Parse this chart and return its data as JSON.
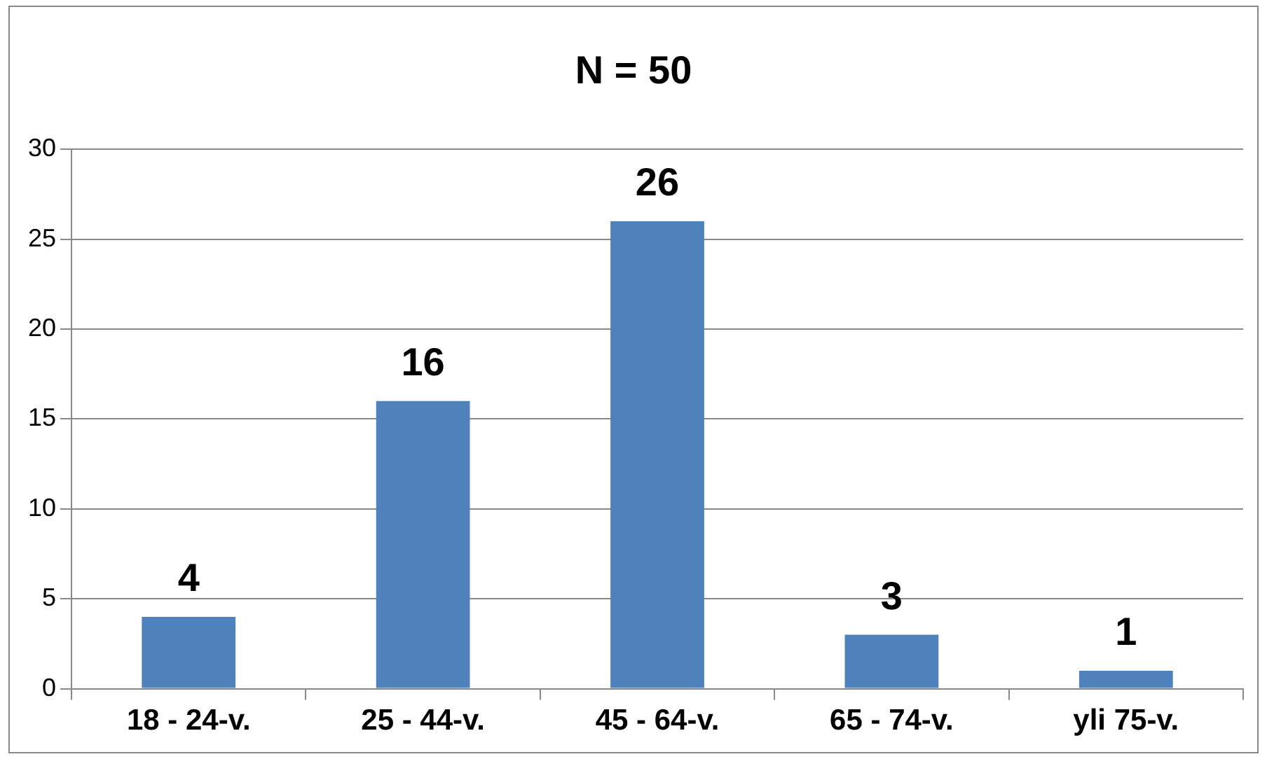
{
  "chart_data": {
    "type": "bar",
    "title": "N = 50",
    "categories": [
      "18 - 24-v.",
      "25 - 44-v.",
      "45 - 64-v.",
      "65 - 74-v.",
      "yli 75-v."
    ],
    "values": [
      4,
      16,
      26,
      3,
      1
    ],
    "color": "#4f81bd",
    "ylim": [
      0,
      30
    ],
    "yticks": [
      0,
      5,
      10,
      15,
      20,
      25,
      30
    ],
    "grid": "y",
    "data_labels": true,
    "legend": false
  }
}
